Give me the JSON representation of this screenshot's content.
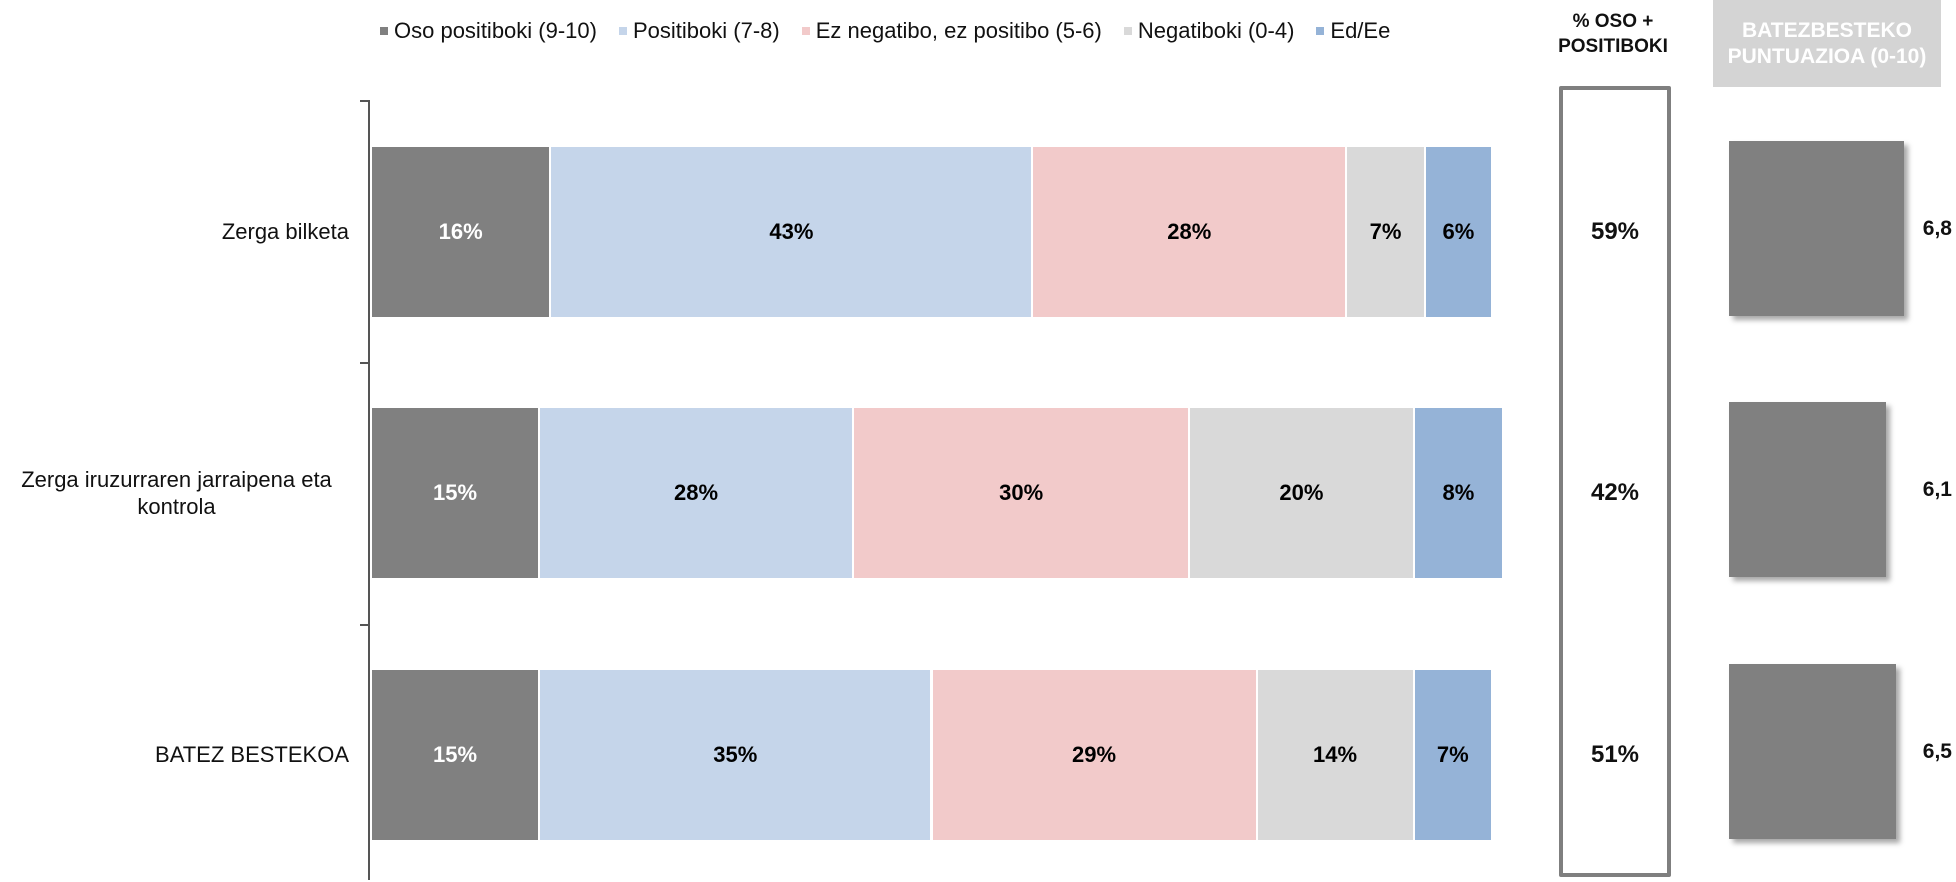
{
  "chart_data": [
    {
      "type": "stacked-bar",
      "orientation": "horizontal",
      "categories": [
        "Zerga bilketa",
        "Zerga iruzurraren jarraipena eta kontrola",
        "BATEZ BESTEKOA"
      ],
      "series": [
        {
          "name": "Oso positiboki (9-10)",
          "color": "#808080",
          "label_color": "#ffffff",
          "values": [
            16,
            15,
            15
          ],
          "value_labels": [
            "16%",
            "15%",
            "15%"
          ]
        },
        {
          "name": "Positiboki (7-8)",
          "color": "#c5d5ea",
          "label_color": "#000000",
          "values": [
            43,
            28,
            35
          ],
          "value_labels": [
            "43%",
            "28%",
            "35%"
          ]
        },
        {
          "name": "Ez negatibo, ez positibo (5-6)",
          "color": "#f2caca",
          "label_color": "#000000",
          "values": [
            28,
            30,
            29
          ],
          "value_labels": [
            "28%",
            "30%",
            "29%"
          ]
        },
        {
          "name": "Negatiboki (0-4)",
          "color": "#d9d9d9",
          "label_color": "#000000",
          "values": [
            7,
            20,
            14
          ],
          "value_labels": [
            "7%",
            "20%",
            "14%"
          ]
        },
        {
          "name": "Ed/Ee",
          "color": "#95b3d7",
          "label_color": "#000000",
          "values": [
            6,
            8,
            7
          ],
          "value_labels": [
            "6%",
            "8%",
            "7%"
          ]
        }
      ],
      "xlim": [
        0,
        100
      ],
      "legend": "top"
    },
    {
      "type": "text",
      "title": "% OSO + POSITIBOKI",
      "values": [
        59,
        42,
        51
      ],
      "value_labels": [
        "59%",
        "42%",
        "51%"
      ]
    },
    {
      "type": "bar",
      "orientation": "horizontal",
      "title": "BATEZBESTEKO PUNTUAZIOA (0-10)",
      "values": [
        6.8,
        6.1,
        6.5
      ],
      "value_labels": [
        "6,8",
        "6,1",
        "6,5"
      ],
      "color": "#808080",
      "xlim": [
        0,
        10
      ]
    }
  ]
}
